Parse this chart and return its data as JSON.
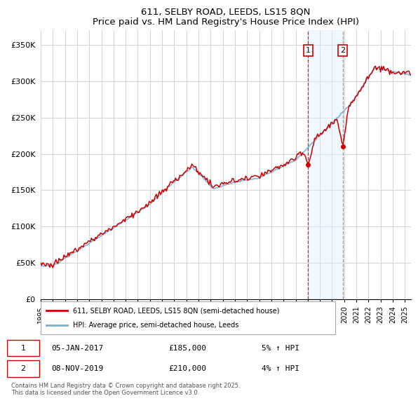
{
  "title": "611, SELBY ROAD, LEEDS, LS15 8QN",
  "subtitle": "Price paid vs. HM Land Registry's House Price Index (HPI)",
  "ylim": [
    0,
    370000
  ],
  "yticks": [
    0,
    50000,
    100000,
    150000,
    200000,
    250000,
    300000,
    350000
  ],
  "ytick_labels": [
    "£0",
    "£50K",
    "£100K",
    "£150K",
    "£200K",
    "£250K",
    "£300K",
    "£350K"
  ],
  "hpi_color": "#7bafd4",
  "price_color": "#cc0000",
  "sale1_year": 2017.03,
  "sale2_year": 2019.87,
  "sale1_price": 185000,
  "sale2_price": 210000,
  "shade_color": "#ddeeff",
  "shade_alpha": 0.45,
  "legend_house_label": "611, SELBY ROAD, LEEDS, LS15 8QN (semi-detached house)",
  "legend_hpi_label": "HPI: Average price, semi-detached house, Leeds",
  "table_row1": [
    "1",
    "05-JAN-2017",
    "£185,000",
    "5% ↑ HPI"
  ],
  "table_row2": [
    "2",
    "08-NOV-2019",
    "£210,000",
    "4% ↑ HPI"
  ],
  "footnote": "Contains HM Land Registry data © Crown copyright and database right 2025.\nThis data is licensed under the Open Government Licence v3.0.",
  "background_color": "#ffffff",
  "grid_color": "#cccccc",
  "xstart": 1995,
  "xend": 2025.5
}
